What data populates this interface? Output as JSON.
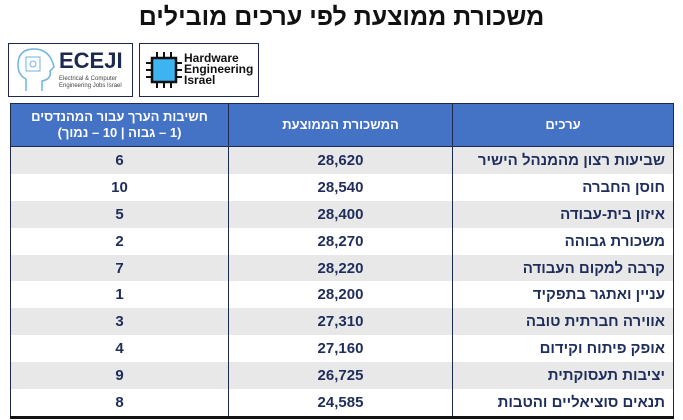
{
  "title": "משכורת ממוצעת לפי ערכים מובילים",
  "logos": {
    "eceji": {
      "name": "ECEJI",
      "subtitle1": "Electrical & Computer",
      "subtitle2": "Engineering Jobs Israel"
    },
    "hwe": {
      "line1": "Hardware",
      "line2": "Engineering",
      "line3": "Israel"
    }
  },
  "table": {
    "headers": [
      "ערכים",
      "המשכורת הממוצעת",
      "חשיבות הערך עבור המהנדסים",
      "(1 – גבוה | 10 – נמוך)"
    ],
    "rows": [
      [
        "שביעות רצון מהמנהל הישיר",
        "28,620",
        "6"
      ],
      [
        "חוסן החברה",
        "28,540",
        "10"
      ],
      [
        "איזון בית-עבודה",
        "28,400",
        "5"
      ],
      [
        "משכורת גבוהה",
        "28,270",
        "2"
      ],
      [
        "קרבה למקום העבודה",
        "28,220",
        "7"
      ],
      [
        "עניין ואתגר בתפקיד",
        "28,200",
        "1"
      ],
      [
        "אווירה חברתית טובה",
        "27,310",
        "3"
      ],
      [
        "אופק פיתוח וקידום",
        "27,160",
        "4"
      ],
      [
        "יציבות תעסוקתית",
        "26,725",
        "9"
      ],
      [
        "תנאים סוציאליים והטבות",
        "24,585",
        "8"
      ]
    ]
  },
  "colors": {
    "header": "#4472c4",
    "text": "#1f2d5a",
    "stripe": "#e8e8e8"
  }
}
